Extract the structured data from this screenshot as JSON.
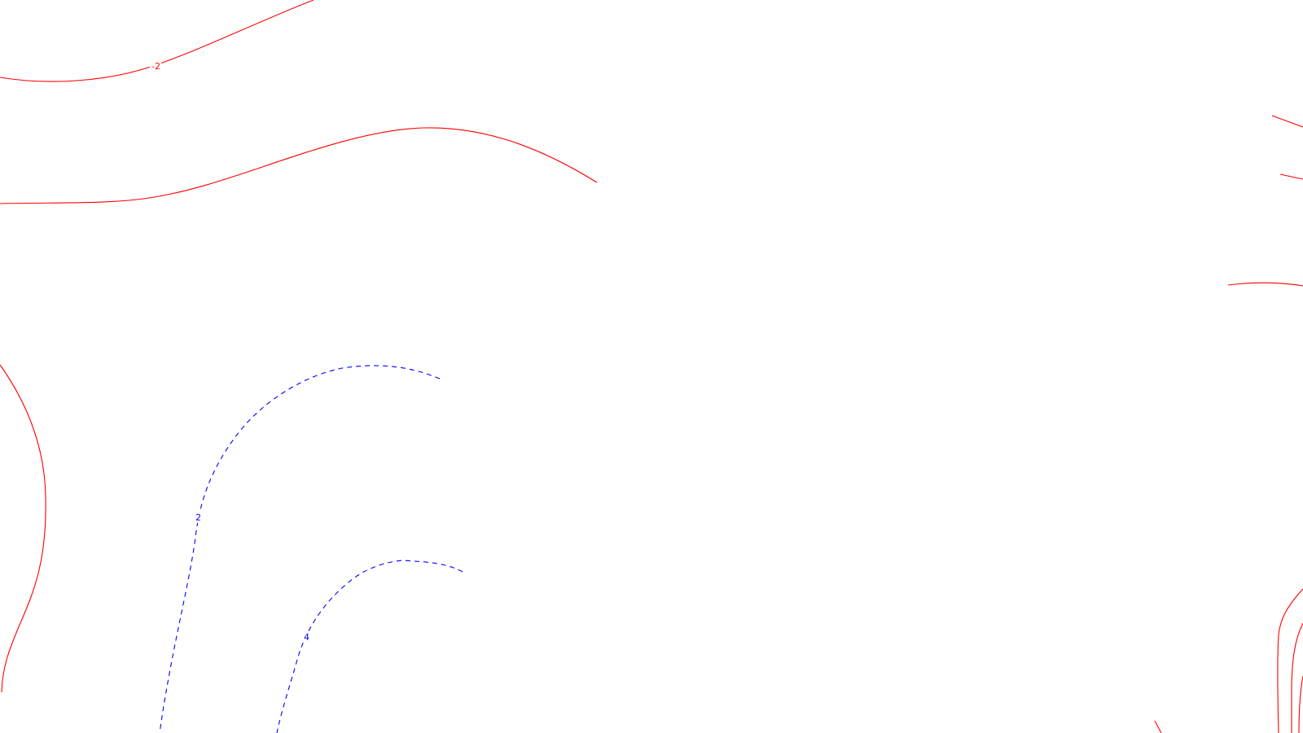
{
  "map": {
    "background_color": "#ffffff",
    "positive_color": "#ff0000",
    "negative_color": "#0000ff",
    "labels": {
      "red_top": "-2",
      "blue_inner": "2",
      "blue_outer": "4"
    }
  }
}
